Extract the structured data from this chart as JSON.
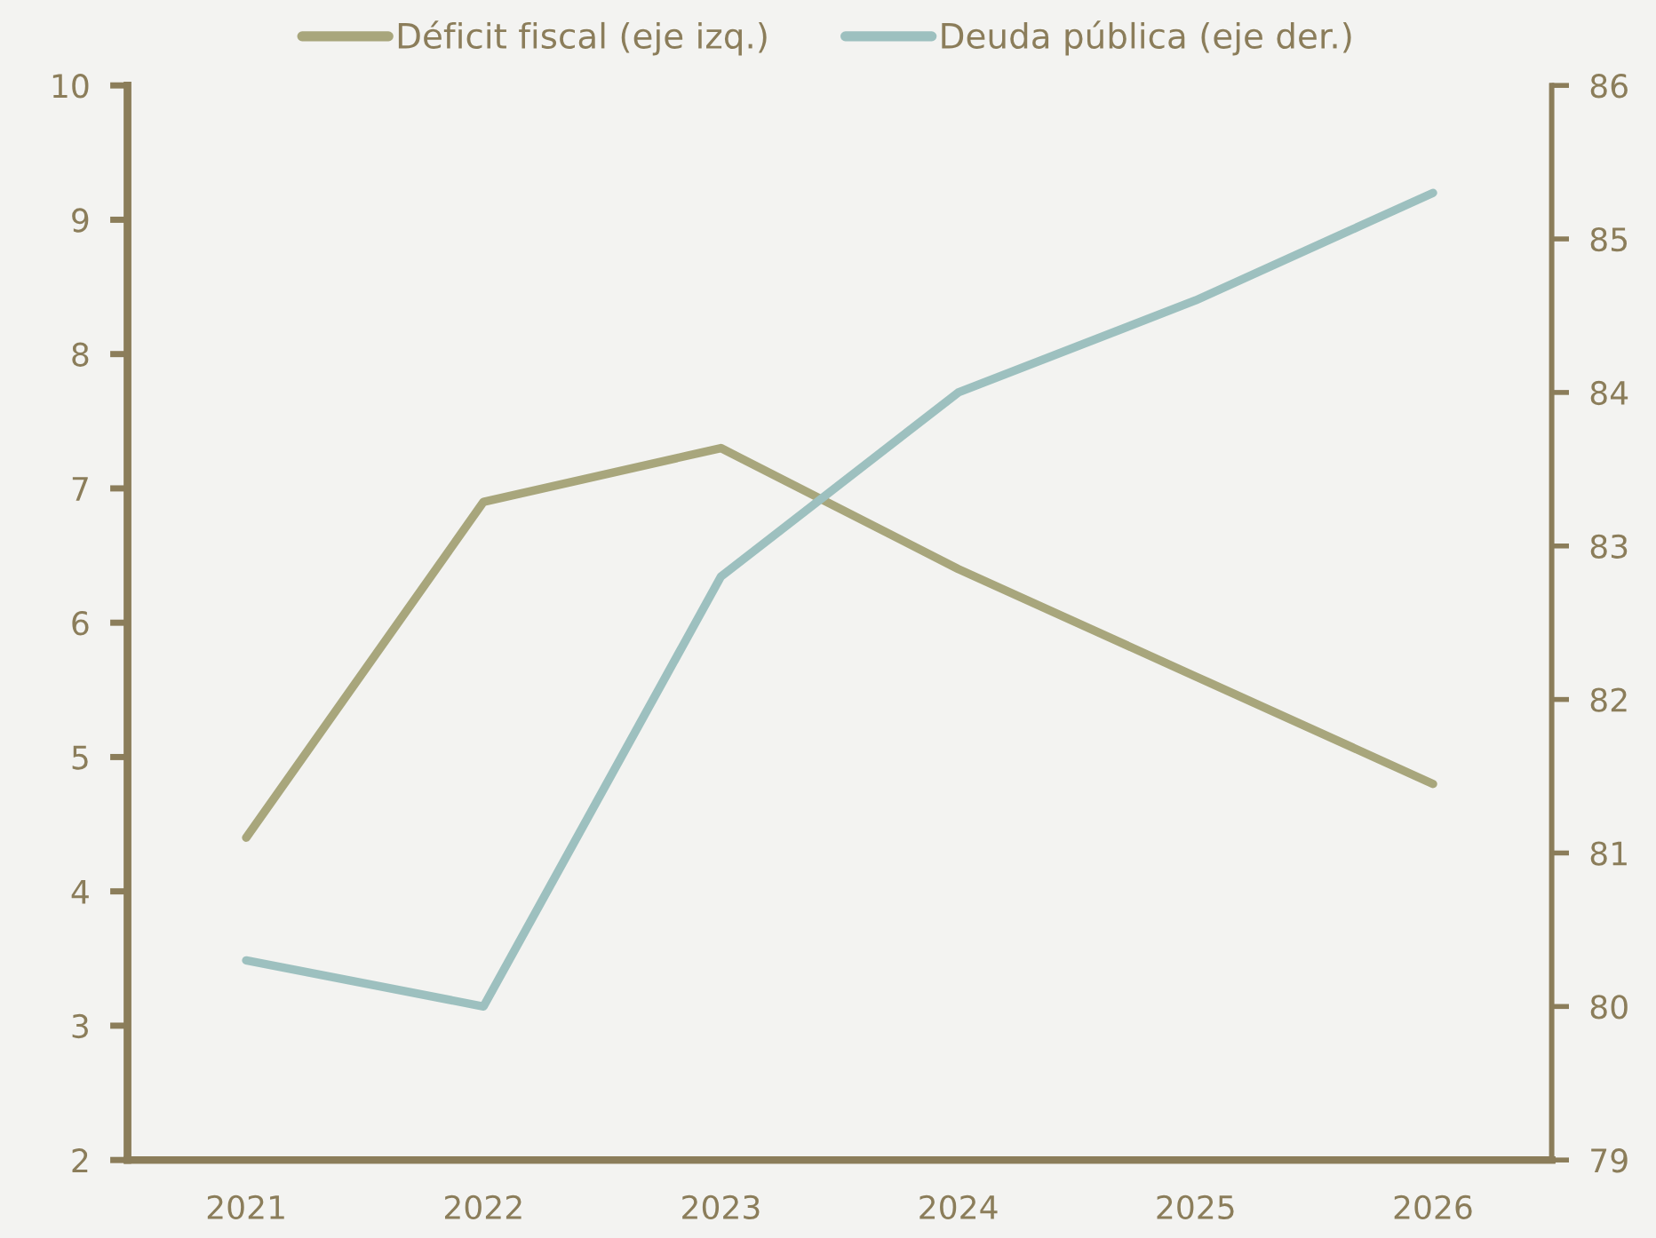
{
  "chart_data": {
    "type": "line",
    "categories": [
      "2021",
      "2022",
      "2023",
      "2024",
      "2025",
      "2026"
    ],
    "series": [
      {
        "name": "Déficit fiscal (eje izq.)",
        "color": "#a8a67c",
        "values": [
          4.4,
          6.9,
          7.3,
          6.4,
          5.6,
          4.8
        ]
      },
      {
        "name": "Deuda pública (eje der.)",
        "color": "#9dc0bf",
        "values": [
          80.3,
          80.0,
          82.8,
          84.0,
          84.6,
          85.3
        ],
        "axis": "y2"
      }
    ],
    "ylim": [
      2,
      10
    ],
    "yticks": [
      2,
      3,
      4,
      5,
      6,
      7,
      8,
      9,
      10
    ],
    "y2lim": [
      79,
      86
    ],
    "y2ticks": [
      79,
      80,
      81,
      82,
      83,
      84,
      85,
      86
    ],
    "legend": "top",
    "line_style": "solid"
  }
}
